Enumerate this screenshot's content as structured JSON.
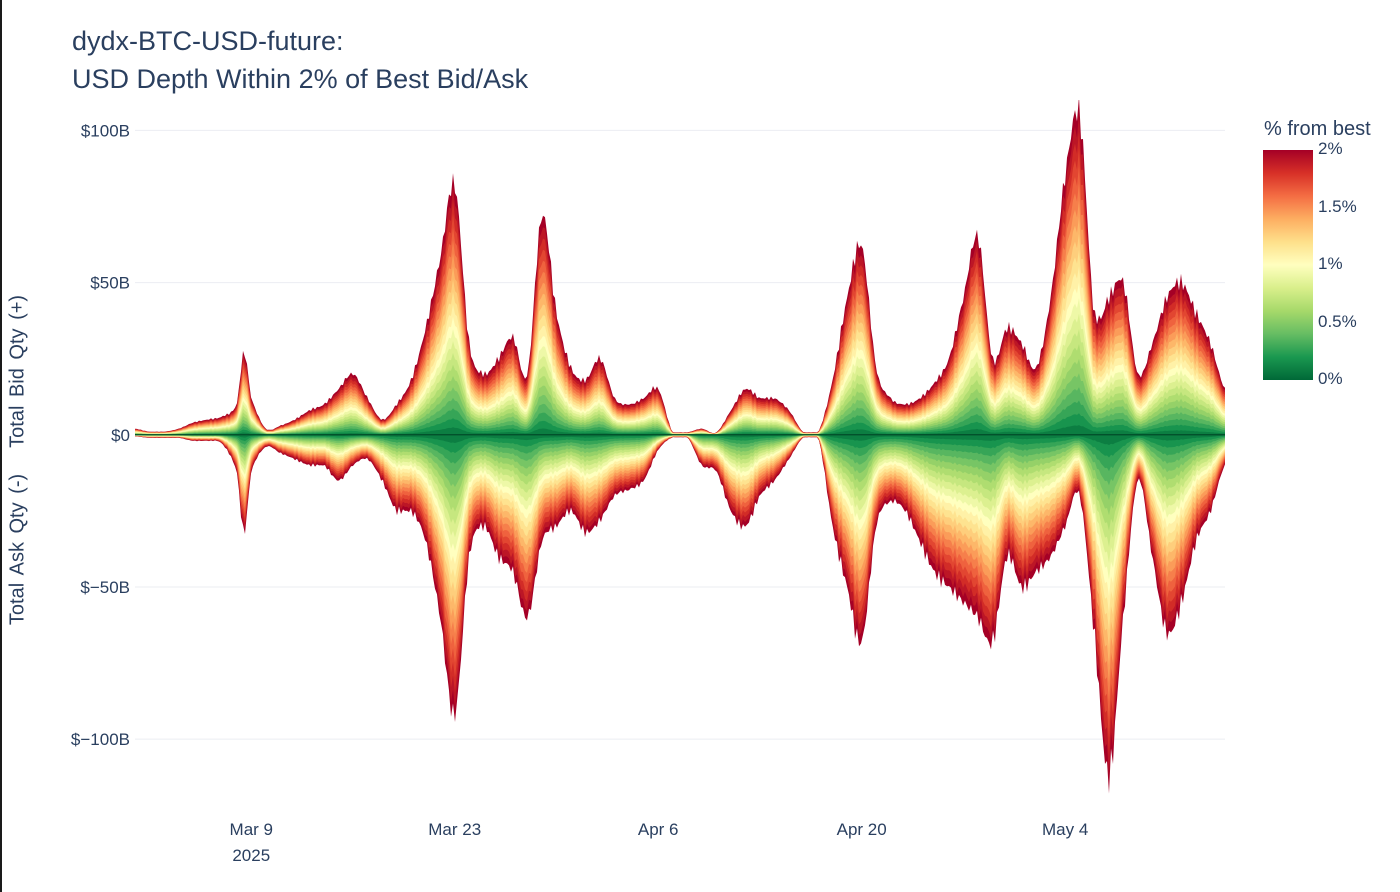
{
  "title": {
    "line1": "dydx-BTC-USD-future:",
    "line2": "USD Depth Within 2% of Best Bid/Ask"
  },
  "ylabel": {
    "bid": "Total Bid Qty (+)",
    "ask": "Total Ask Qty (-)"
  },
  "colorbar": {
    "title": "% from best",
    "ticks": [
      "2%",
      "1.5%",
      "1%",
      "0.5%",
      "0%"
    ],
    "colors": [
      "#a50026",
      "#d73027",
      "#f46d43",
      "#fdae61",
      "#fee08b",
      "#ffffbf",
      "#d9ef8b",
      "#a6d96a",
      "#66bd63",
      "#1a9850",
      "#006837"
    ]
  },
  "chart_data": {
    "type": "area",
    "title": "dydx-BTC-USD-future: USD Depth Within 2% of Best Bid/Ask",
    "ylabel": "Total Ask Qty (-)   Total Bid Qty (+)",
    "x_range": [
      "2025-03-01",
      "2025-05-15"
    ],
    "ylim": [
      -120,
      110
    ],
    "y_unit": "billion USD",
    "y_ticks": [
      {
        "value": 100,
        "label": "$100B"
      },
      {
        "value": 50,
        "label": "$50B"
      },
      {
        "value": 0,
        "label": "$0"
      },
      {
        "value": -50,
        "label": "$−50B"
      },
      {
        "value": -100,
        "label": "$−100B"
      }
    ],
    "x_ticks": [
      {
        "date": "2025-03-09",
        "label": "Mar 9",
        "sublabel": "2025"
      },
      {
        "date": "2025-03-23",
        "label": "Mar 23",
        "sublabel": ""
      },
      {
        "date": "2025-04-06",
        "label": "Apr 6",
        "sublabel": ""
      },
      {
        "date": "2025-04-20",
        "label": "Apr 20",
        "sublabel": ""
      },
      {
        "date": "2025-05-04",
        "label": "May 4",
        "sublabel": ""
      }
    ],
    "grid": true,
    "legend": "colorbar right",
    "bid_total": [
      [
        "2025-03-01",
        2
      ],
      [
        "2025-03-02",
        1
      ],
      [
        "2025-03-03",
        1
      ],
      [
        "2025-03-04",
        2
      ],
      [
        "2025-03-05",
        4
      ],
      [
        "2025-03-06",
        5
      ],
      [
        "2025-03-07",
        6
      ],
      [
        "2025-03-08",
        10
      ],
      [
        "2025-03-08T12:00",
        27
      ],
      [
        "2025-03-09",
        12
      ],
      [
        "2025-03-10",
        2
      ],
      [
        "2025-03-11",
        3
      ],
      [
        "2025-03-12",
        5
      ],
      [
        "2025-03-13",
        8
      ],
      [
        "2025-03-14",
        10
      ],
      [
        "2025-03-15",
        15
      ],
      [
        "2025-03-16",
        20
      ],
      [
        "2025-03-17",
        12
      ],
      [
        "2025-03-18",
        5
      ],
      [
        "2025-03-19",
        10
      ],
      [
        "2025-03-20",
        18
      ],
      [
        "2025-03-21",
        35
      ],
      [
        "2025-03-22",
        58
      ],
      [
        "2025-03-23",
        82
      ],
      [
        "2025-03-24",
        30
      ],
      [
        "2025-03-25",
        20
      ],
      [
        "2025-03-26",
        25
      ],
      [
        "2025-03-27",
        32
      ],
      [
        "2025-03-28",
        20
      ],
      [
        "2025-03-29",
        72
      ],
      [
        "2025-03-30",
        40
      ],
      [
        "2025-03-31",
        22
      ],
      [
        "2025-04-01",
        18
      ],
      [
        "2025-04-02",
        25
      ],
      [
        "2025-04-03",
        12
      ],
      [
        "2025-04-04",
        10
      ],
      [
        "2025-04-05",
        12
      ],
      [
        "2025-04-06",
        15
      ],
      [
        "2025-04-07",
        0.8
      ],
      [
        "2025-04-08",
        0.8
      ],
      [
        "2025-04-09",
        2
      ],
      [
        "2025-04-10",
        0.8
      ],
      [
        "2025-04-11",
        8
      ],
      [
        "2025-04-12",
        15
      ],
      [
        "2025-04-13",
        12
      ],
      [
        "2025-04-14",
        12
      ],
      [
        "2025-04-15",
        8
      ],
      [
        "2025-04-16",
        0.8
      ],
      [
        "2025-04-17",
        0.8
      ],
      [
        "2025-04-18",
        18
      ],
      [
        "2025-04-19",
        45
      ],
      [
        "2025-04-20",
        62
      ],
      [
        "2025-04-21",
        22
      ],
      [
        "2025-04-22",
        12
      ],
      [
        "2025-04-23",
        10
      ],
      [
        "2025-04-24",
        12
      ],
      [
        "2025-04-25",
        17
      ],
      [
        "2025-04-26",
        25
      ],
      [
        "2025-04-27",
        45
      ],
      [
        "2025-04-28",
        65
      ],
      [
        "2025-04-29",
        25
      ],
      [
        "2025-04-30",
        35
      ],
      [
        "2025-05-01",
        30
      ],
      [
        "2025-05-02",
        22
      ],
      [
        "2025-05-03",
        45
      ],
      [
        "2025-05-04",
        85
      ],
      [
        "2025-05-05",
        105
      ],
      [
        "2025-05-06",
        40
      ],
      [
        "2025-05-07",
        45
      ],
      [
        "2025-05-08",
        50
      ],
      [
        "2025-05-09",
        20
      ],
      [
        "2025-05-10",
        30
      ],
      [
        "2025-05-11",
        45
      ],
      [
        "2025-05-12",
        50
      ],
      [
        "2025-05-13",
        40
      ],
      [
        "2025-05-14",
        30
      ],
      [
        "2025-05-15",
        15
      ]
    ],
    "ask_total": [
      [
        "2025-03-01",
        -0.5
      ],
      [
        "2025-03-02",
        -1
      ],
      [
        "2025-03-03",
        -1
      ],
      [
        "2025-03-04",
        -1
      ],
      [
        "2025-03-05",
        -2
      ],
      [
        "2025-03-06",
        -2
      ],
      [
        "2025-03-07",
        -3
      ],
      [
        "2025-03-08",
        -12
      ],
      [
        "2025-03-08T12:00",
        -32
      ],
      [
        "2025-03-09",
        -12
      ],
      [
        "2025-03-10",
        -4
      ],
      [
        "2025-03-11",
        -6
      ],
      [
        "2025-03-12",
        -8
      ],
      [
        "2025-03-13",
        -10
      ],
      [
        "2025-03-14",
        -10
      ],
      [
        "2025-03-15",
        -15
      ],
      [
        "2025-03-16",
        -10
      ],
      [
        "2025-03-17",
        -8
      ],
      [
        "2025-03-18",
        -15
      ],
      [
        "2025-03-19",
        -25
      ],
      [
        "2025-03-20",
        -25
      ],
      [
        "2025-03-21",
        -35
      ],
      [
        "2025-03-22",
        -60
      ],
      [
        "2025-03-23",
        -92
      ],
      [
        "2025-03-24",
        -40
      ],
      [
        "2025-03-25",
        -30
      ],
      [
        "2025-03-26",
        -40
      ],
      [
        "2025-03-27",
        -45
      ],
      [
        "2025-03-28",
        -60
      ],
      [
        "2025-03-29",
        -35
      ],
      [
        "2025-03-30",
        -30
      ],
      [
        "2025-03-31",
        -25
      ],
      [
        "2025-04-01",
        -32
      ],
      [
        "2025-04-02",
        -28
      ],
      [
        "2025-04-03",
        -20
      ],
      [
        "2025-04-04",
        -18
      ],
      [
        "2025-04-05",
        -15
      ],
      [
        "2025-04-06",
        -5
      ],
      [
        "2025-04-07",
        -0.8
      ],
      [
        "2025-04-08",
        -0.8
      ],
      [
        "2025-04-09",
        -10
      ],
      [
        "2025-04-10",
        -12
      ],
      [
        "2025-04-11",
        -25
      ],
      [
        "2025-04-12",
        -30
      ],
      [
        "2025-04-13",
        -20
      ],
      [
        "2025-04-14",
        -15
      ],
      [
        "2025-04-15",
        -8
      ],
      [
        "2025-04-16",
        -0.8
      ],
      [
        "2025-04-17",
        -0.8
      ],
      [
        "2025-04-18",
        -30
      ],
      [
        "2025-04-19",
        -50
      ],
      [
        "2025-04-20",
        -68
      ],
      [
        "2025-04-21",
        -30
      ],
      [
        "2025-04-22",
        -22
      ],
      [
        "2025-04-23",
        -25
      ],
      [
        "2025-04-24",
        -35
      ],
      [
        "2025-04-25",
        -45
      ],
      [
        "2025-04-26",
        -50
      ],
      [
        "2025-04-27",
        -55
      ],
      [
        "2025-04-28",
        -60
      ],
      [
        "2025-04-29",
        -68
      ],
      [
        "2025-04-30",
        -40
      ],
      [
        "2025-05-01",
        -50
      ],
      [
        "2025-05-02",
        -45
      ],
      [
        "2025-05-03",
        -40
      ],
      [
        "2025-05-04",
        -30
      ],
      [
        "2025-05-05",
        -20
      ],
      [
        "2025-05-06",
        -65
      ],
      [
        "2025-05-07",
        -112
      ],
      [
        "2025-05-08",
        -60
      ],
      [
        "2025-05-09",
        -15
      ],
      [
        "2025-05-10",
        -40
      ],
      [
        "2025-05-11",
        -65
      ],
      [
        "2025-05-12",
        -55
      ],
      [
        "2025-05-13",
        -35
      ],
      [
        "2025-05-14",
        -25
      ],
      [
        "2025-05-15",
        -10
      ]
    ]
  }
}
